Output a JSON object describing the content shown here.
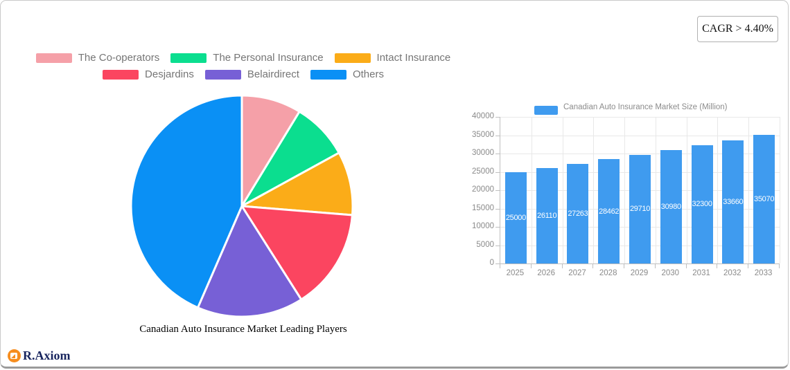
{
  "card": {
    "cagr_badge": "CAGR > 4.40%",
    "logo": {
      "text": "R.Axiom",
      "icon": "chart-document-circle-icon",
      "icon_color": "#f68d1e",
      "text_color": "#18255e"
    }
  },
  "chart_data": [
    {
      "type": "pie",
      "title": "Canadian Auto Insurance Market Leading Players",
      "labels": [
        "The Co-operators",
        "The Personal Insurance",
        "Intact Insurance",
        "Desjardins",
        "Belairdirect",
        "Others"
      ],
      "values": [
        8.7,
        8.3,
        9.3,
        14.7,
        15.5,
        43.5
      ],
      "unit": "percent-share (estimated from slice angles)",
      "colors": [
        "#f5a0a8",
        "#0bde8f",
        "#fbac18",
        "#fb4560",
        "#7760d6",
        "#0a90f5"
      ],
      "legend_position": "top",
      "legend_rows": [
        [
          0,
          1,
          2
        ],
        [
          3,
          4,
          5
        ]
      ],
      "start_angle_deg": 0,
      "direction": "clockwise"
    },
    {
      "type": "bar",
      "legend_label": "Canadian Auto Insurance Market Size (Million)",
      "categories": [
        "2025",
        "2026",
        "2027",
        "2028",
        "2029",
        "2030",
        "2031",
        "2032",
        "2033"
      ],
      "values": [
        25000,
        26110,
        27263,
        28462,
        29710,
        30980,
        32300,
        33660,
        35070
      ],
      "bar_color": "#3f9bef",
      "value_label_style": "white-inside-center",
      "ylim": [
        0,
        40000
      ],
      "y_ticks": [
        0,
        5000,
        10000,
        15000,
        20000,
        25000,
        30000,
        35000,
        40000
      ],
      "grid": true,
      "legend_position": "top"
    }
  ]
}
